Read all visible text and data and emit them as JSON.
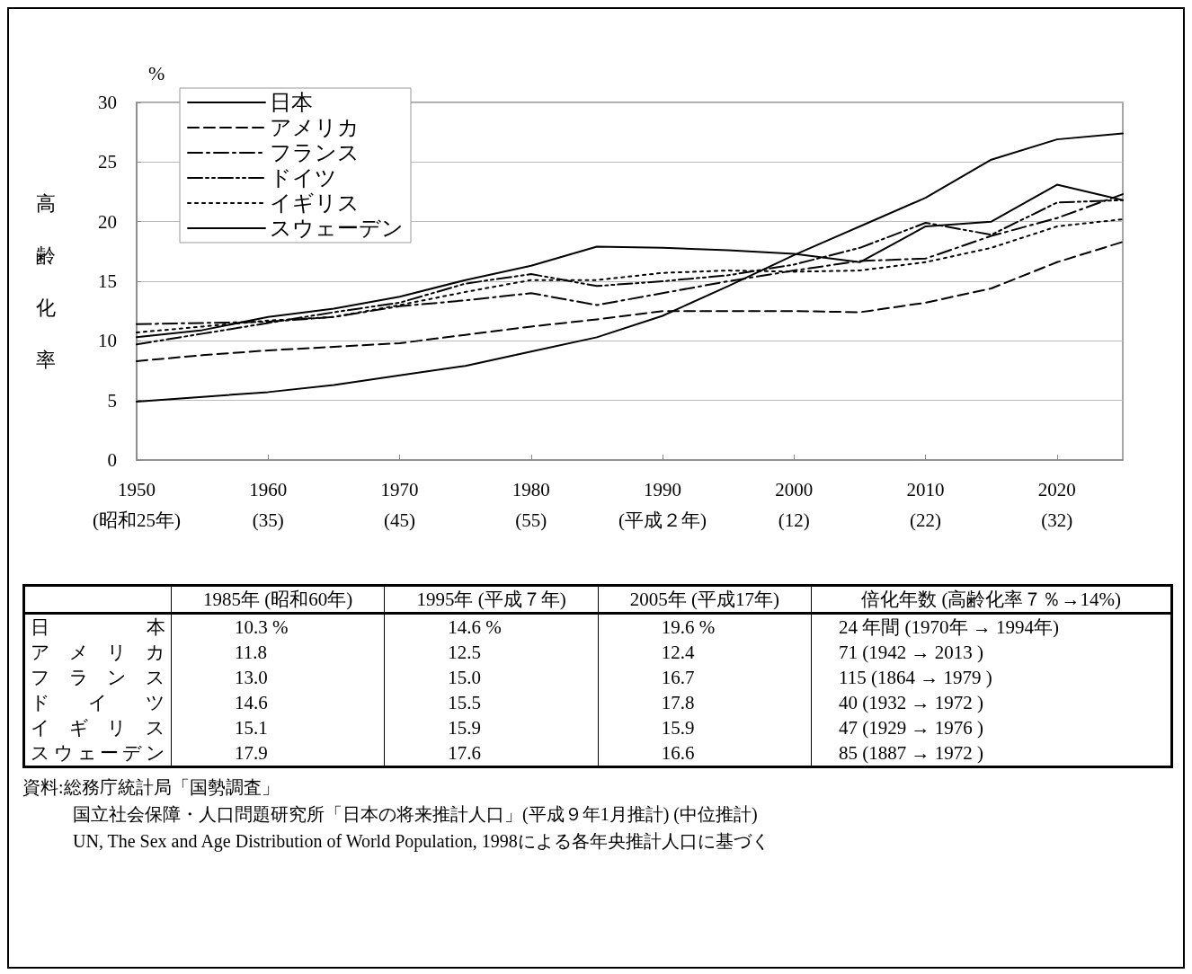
{
  "chart_data": [
    {
      "type": "line",
      "ylabel": "高齢化率",
      "annotations": [
        "%"
      ],
      "categories": [
        "1950\n(昭和25年)",
        null,
        "1960\n(35)",
        null,
        "1970\n(45)",
        null,
        "1980\n(55)",
        null,
        "1990\n(平成２年)",
        null,
        "2000\n(12)",
        null,
        "2010\n(22)",
        null,
        "2020\n(32)",
        null
      ],
      "ylim": [
        0,
        30
      ],
      "yticks": [
        0,
        5,
        10,
        15,
        20,
        25,
        30
      ],
      "grid": "y",
      "legend": "top left",
      "marker": "none",
      "series": [
        {
          "name": "日本",
          "color": "#000000",
          "line_style": "solid",
          "values": [
            4.9,
            5.3,
            5.7,
            6.3,
            7.1,
            7.9,
            9.1,
            10.3,
            12.1,
            14.6,
            17.2,
            19.6,
            22.0,
            25.2,
            26.9,
            27.4
          ]
        },
        {
          "name": "アメリカ",
          "color": "#000000",
          "line_style": "dashed",
          "values": [
            8.3,
            8.8,
            9.2,
            9.5,
            9.8,
            10.5,
            11.2,
            11.8,
            12.5,
            12.5,
            12.5,
            12.4,
            13.2,
            14.4,
            16.6,
            18.3
          ]
        },
        {
          "name": "フランス",
          "color": "#000000",
          "line_style": "dashdot",
          "values": [
            11.4,
            11.5,
            11.6,
            12.0,
            12.9,
            13.4,
            14.0,
            13.0,
            14.0,
            15.0,
            15.9,
            16.7,
            16.9,
            18.8,
            20.3,
            22.3
          ]
        },
        {
          "name": "ドイツ",
          "color": "#000000",
          "line_style": "dashdotdot",
          "values": [
            9.7,
            10.6,
            11.5,
            12.4,
            13.2,
            14.8,
            15.6,
            14.6,
            15.0,
            15.5,
            16.4,
            17.8,
            19.9,
            18.9,
            21.6,
            21.8
          ]
        },
        {
          "name": "イギリス",
          "color": "#000000",
          "line_style": "dotted",
          "values": [
            10.7,
            11.2,
            11.7,
            12.0,
            13.0,
            14.1,
            15.1,
            15.1,
            15.7,
            15.9,
            15.8,
            15.9,
            16.6,
            17.8,
            19.6,
            20.2
          ]
        },
        {
          "name": "スウェーデン",
          "color": "#000000",
          "line_style": "solid",
          "values": [
            10.3,
            10.9,
            12.0,
            12.7,
            13.7,
            15.1,
            16.3,
            17.9,
            17.8,
            17.6,
            17.3,
            16.6,
            19.6,
            20.0,
            23.1,
            21.8
          ]
        }
      ]
    },
    {
      "type": "other",
      "categories": [
        null,
        "1985年 (昭和60年)",
        "1995年 (平成７年)",
        "2005年 (平成17年)",
        "倍化年数 (高齢化率７％→14%)"
      ],
      "y_categories": [
        "日本",
        "アメリカ",
        "フランス",
        "ドイツ",
        "イギリス",
        "スウェーデン"
      ],
      "cell_labels": [
        [
          "10.3 %",
          "14.6 %",
          "19.6 %",
          "24 年間 (1970年 → 1994年)"
        ],
        [
          "11.8",
          "12.5",
          "12.4",
          "71 (1942 → 2013 )"
        ],
        [
          "13.0",
          "15.0",
          "16.7",
          "115 (1864 → 1979 )"
        ],
        [
          "14.6",
          "15.5",
          "17.8",
          "40 (1932 → 1972 )"
        ],
        [
          "15.1",
          "15.9",
          "15.9",
          "47 (1929 → 1976 )"
        ],
        [
          "17.9",
          "17.6",
          "16.6",
          "85 (1887 → 1972 )"
        ]
      ],
      "annotations": [
        "資料:総務庁統計局「国勢調査」",
        "国立社会保障・人口問題研究所「日本の将来推計人口」(平成９年1月推計) (中位推計)",
        "UN, The Sex and Age Distribution of World Population, 1998による各年央推計人口に基づく"
      ]
    }
  ]
}
